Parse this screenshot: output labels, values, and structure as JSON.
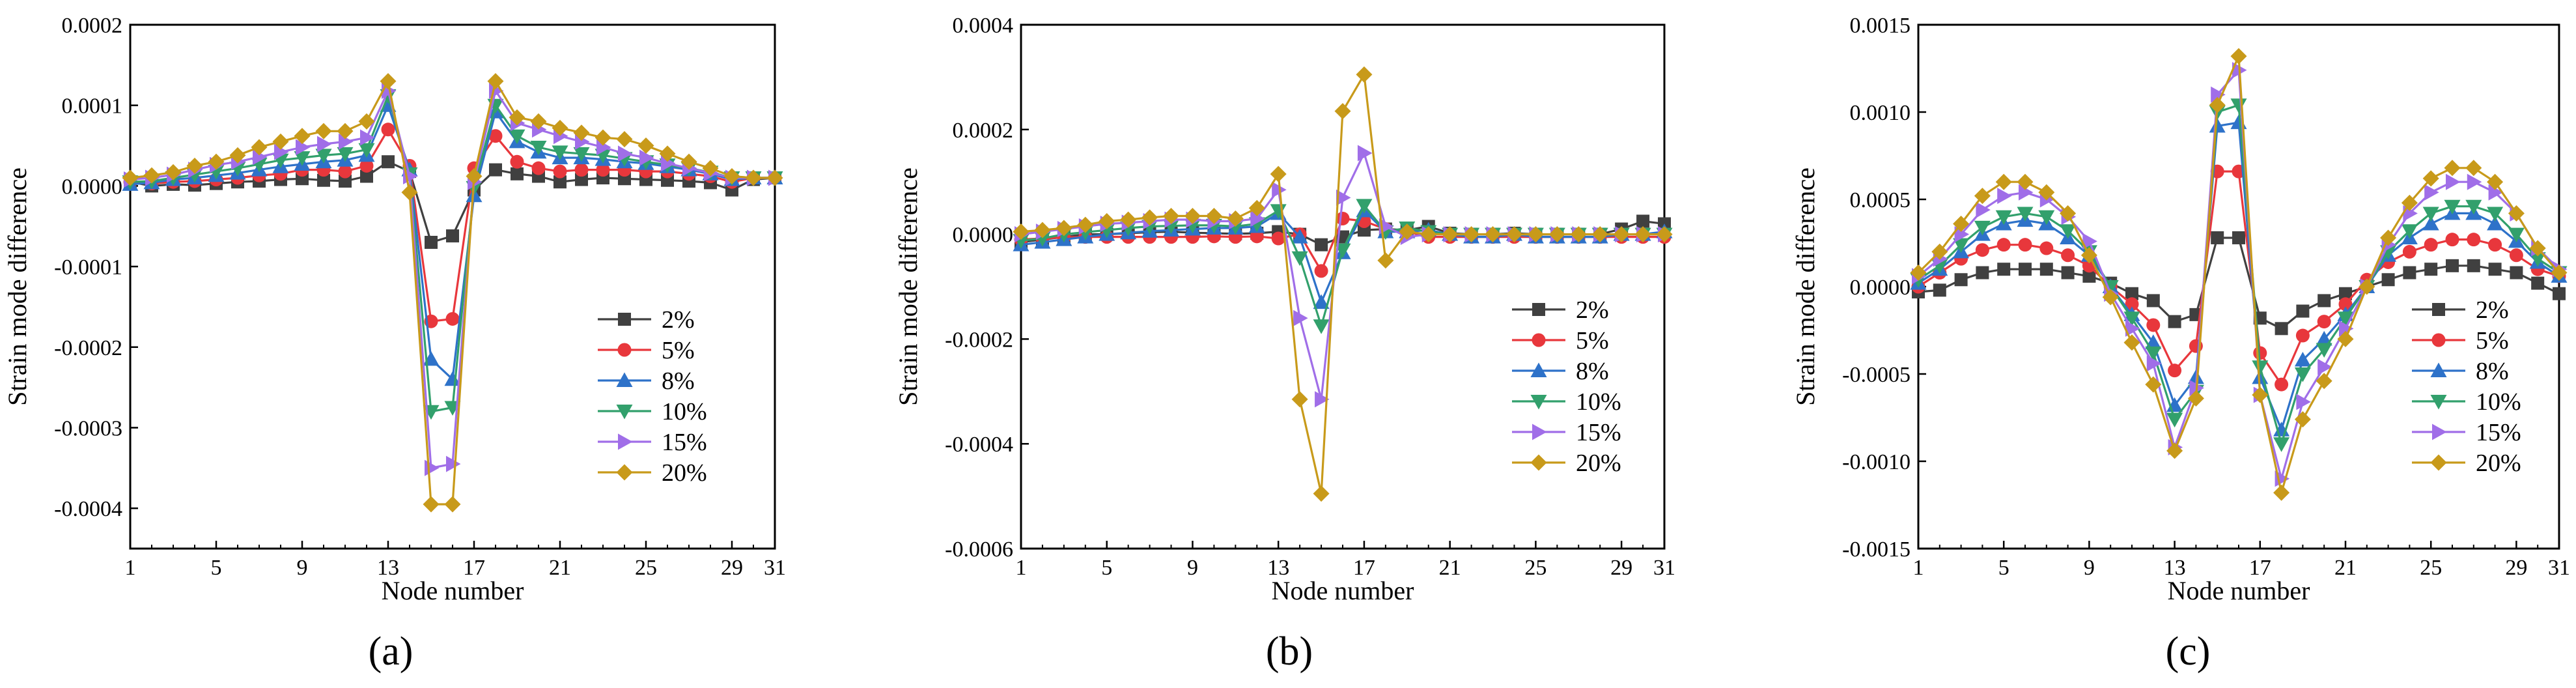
{
  "figure": {
    "panel_labels": [
      "(a)",
      "(b)",
      "(c)"
    ]
  },
  "colors": {
    "2%": "#404040",
    "5%": "#e8373c",
    "8%": "#2e72c9",
    "10%": "#32a06c",
    "15%": "#a06ee8",
    "20%": "#c89a1a"
  },
  "markers": {
    "2%": "square",
    "5%": "circle",
    "8%": "triangle-up",
    "10%": "triangle-down",
    "15%": "triangle-right",
    "20%": "diamond"
  },
  "chart_data": [
    {
      "type": "line",
      "panel": "(a)",
      "xlabel": "Node number",
      "ylabel": "Strain mode difference",
      "xlim": [
        1,
        31
      ],
      "ylim": [
        -0.00045,
        0.0002
      ],
      "xticks": [
        1,
        5,
        9,
        13,
        17,
        21,
        25,
        29,
        31
      ],
      "yticks": [
        -0.0004,
        -0.0003,
        -0.0002,
        -0.0001,
        0.0,
        0.0001,
        0.0002
      ],
      "ytick_labels": [
        "-0.0004",
        "-0.0003",
        "-0.0002",
        "-0.0001",
        "0.0000",
        "0.0001",
        "0.0002"
      ],
      "legend": [
        "2%",
        "5%",
        "8%",
        "10%",
        "15%",
        "20%"
      ],
      "x": [
        1,
        2,
        3,
        4,
        5,
        6,
        7,
        8,
        9,
        10,
        11,
        12,
        13,
        14,
        15,
        16,
        17,
        18,
        19,
        20,
        21,
        22,
        23,
        24,
        25,
        26,
        27,
        28,
        29,
        30,
        31
      ],
      "series": [
        {
          "name": "2%",
          "values": [
            5e-06,
            0,
            2e-06,
            1e-06,
            3e-06,
            5e-06,
            6e-06,
            8e-06,
            9e-06,
            7e-06,
            6e-06,
            1.2e-05,
            3e-05,
            1.8e-05,
            -7e-05,
            -6.2e-05,
            -5e-06,
            2e-05,
            1.5e-05,
            1.2e-05,
            5e-06,
            8e-06,
            1e-05,
            9e-06,
            8e-06,
            7e-06,
            6e-06,
            4e-06,
            -5e-06,
            8e-06,
            1e-05
          ]
        },
        {
          "name": "5%",
          "values": [
            5e-06,
            3e-06,
            5e-06,
            6e-06,
            8e-06,
            1e-05,
            1.3e-05,
            1.5e-05,
            2e-05,
            2e-05,
            1.8e-05,
            2.5e-05,
            7e-05,
            2.5e-05,
            -0.000168,
            -0.000165,
            2.2e-05,
            6.2e-05,
            3e-05,
            2.2e-05,
            1.8e-05,
            2e-05,
            2e-05,
            2e-05,
            1.8e-05,
            1.8e-05,
            1.5e-05,
            1.2e-05,
            5e-06,
            1e-05,
            1e-05
          ]
        },
        {
          "name": "8%",
          "values": [
            2e-06,
            4e-06,
            8e-06,
            1e-05,
            1.3e-05,
            1.6e-05,
            2e-05,
            2.4e-05,
            2.7e-05,
            3e-05,
            3.2e-05,
            3.8e-05,
            0.0001,
            2e-05,
            -0.000215,
            -0.00024,
            -1.2e-05,
            9.2e-05,
            5.5e-05,
            4.2e-05,
            3.5e-05,
            3.5e-05,
            3.3e-05,
            3e-05,
            2.8e-05,
            2.4e-05,
            2e-05,
            1.5e-05,
            8e-06,
            1e-05,
            1e-05
          ]
        },
        {
          "name": "10%",
          "values": [
            5e-06,
            6e-06,
            1e-05,
            1.4e-05,
            1.8e-05,
            2.2e-05,
            2.7e-05,
            3.2e-05,
            3.5e-05,
            3.8e-05,
            4e-05,
            4.5e-05,
            0.000112,
            1.5e-05,
            -0.00028,
            -0.000275,
            -2e-06,
            0.0001,
            6.2e-05,
            4.8e-05,
            4.2e-05,
            4e-05,
            3.8e-05,
            3.4e-05,
            3e-05,
            2.6e-05,
            2.2e-05,
            1.7e-05,
            1e-05,
            1e-05,
            1e-05
          ]
        },
        {
          "name": "15%",
          "values": [
            8e-06,
            1e-05,
            1.4e-05,
            2e-05,
            2.6e-05,
            3e-05,
            3.6e-05,
            4.2e-05,
            4.8e-05,
            5.2e-05,
            5.5e-05,
            6e-05,
            0.000118,
            1.2e-05,
            -0.00035,
            -0.000345,
            5e-06,
            0.000118,
            7.8e-05,
            7e-05,
            6.2e-05,
            5.5e-05,
            4.8e-05,
            4e-05,
            3.5e-05,
            2.8e-05,
            2.2e-05,
            1.6e-05,
            1e-05,
            1e-05,
            1e-05
          ]
        },
        {
          "name": "20%",
          "values": [
            1e-05,
            1.3e-05,
            1.7e-05,
            2.5e-05,
            3e-05,
            3.8e-05,
            4.8e-05,
            5.5e-05,
            6.2e-05,
            6.8e-05,
            6.8e-05,
            8e-05,
            0.00013,
            -8e-06,
            -0.000395,
            -0.000395,
            1.2e-05,
            0.00013,
            8.5e-05,
            8e-05,
            7.2e-05,
            6.6e-05,
            6e-05,
            5.8e-05,
            5e-05,
            4e-05,
            3e-05,
            2.2e-05,
            1.2e-05,
            1e-05,
            1e-05
          ]
        }
      ]
    },
    {
      "type": "line",
      "panel": "(b)",
      "xlabel": "Node number",
      "ylabel": "Strain mode difference",
      "xlim": [
        1,
        31
      ],
      "ylim": [
        -0.0006,
        0.0004
      ],
      "xticks": [
        1,
        5,
        9,
        13,
        17,
        21,
        25,
        29,
        31
      ],
      "yticks": [
        -0.0006,
        -0.0004,
        -0.0002,
        0.0,
        0.0002,
        0.0004
      ],
      "ytick_labels": [
        "-0.0006",
        "-0.0004",
        "-0.0002",
        "0.0000",
        "0.0002",
        "0.0004"
      ],
      "legend": [
        "2%",
        "5%",
        "8%",
        "10%",
        "15%",
        "20%"
      ],
      "x": [
        1,
        2,
        3,
        4,
        5,
        6,
        7,
        8,
        9,
        10,
        11,
        12,
        13,
        14,
        15,
        16,
        17,
        18,
        19,
        20,
        21,
        22,
        23,
        24,
        25,
        26,
        27,
        28,
        29,
        30,
        31
      ],
      "series": [
        {
          "name": "2%",
          "values": [
            -1.5e-05,
            -1e-05,
            -5e-06,
            0,
            0,
            2e-06,
            4e-06,
            5e-06,
            3e-06,
            2e-06,
            1e-06,
            2e-06,
            5e-06,
            0,
            -2e-05,
            -5e-06,
            8e-06,
            1e-05,
            8e-06,
            1.5e-05,
            2e-06,
            0,
            0,
            2e-06,
            0,
            0,
            0,
            0,
            1e-05,
            2.5e-05,
            2e-05
          ]
        },
        {
          "name": "5%",
          "values": [
            -1e-05,
            -8e-06,
            -6e-06,
            -5e-06,
            -5e-06,
            -5e-06,
            -5e-06,
            -5e-06,
            -5e-06,
            -4e-06,
            -5e-06,
            -4e-06,
            -8e-06,
            0,
            -7e-05,
            3e-05,
            2.5e-05,
            1e-05,
            5e-06,
            -5e-06,
            -5e-06,
            -5e-06,
            -5e-06,
            -5e-06,
            -5e-06,
            -5e-06,
            -5e-06,
            -5e-06,
            -5e-06,
            -5e-06,
            -5e-06
          ]
        },
        {
          "name": "8%",
          "values": [
            -2e-05,
            -1.5e-05,
            -1e-05,
            -5e-06,
            0,
            3e-06,
            6e-06,
            8e-06,
            1e-05,
            1.2e-05,
            1.2e-05,
            1.5e-05,
            4e-05,
            -5e-06,
            -0.00013,
            -3.5e-05,
            4.5e-05,
            5e-06,
            5e-06,
            8e-06,
            0,
            -5e-06,
            -5e-06,
            0,
            -5e-06,
            -5e-06,
            -5e-06,
            -5e-06,
            0,
            0,
            5e-06
          ]
        },
        {
          "name": "10%",
          "values": [
            -1.2e-05,
            -8e-06,
            0,
            4e-06,
            8e-06,
            1.2e-05,
            1.5e-05,
            1.6e-05,
            1.7e-05,
            1.7e-05,
            1.5e-05,
            2e-05,
            4.5e-05,
            -4.5e-05,
            -0.000175,
            -3e-05,
            5.5e-05,
            5e-06,
            1.2e-05,
            5e-06,
            0,
            0,
            0,
            0,
            0,
            0,
            0,
            0,
            0,
            0,
            0
          ]
        },
        {
          "name": "15%",
          "values": [
            0,
            5e-06,
            1e-05,
            1.5e-05,
            2e-05,
            2.2e-05,
            2.5e-05,
            2.8e-05,
            2.8e-05,
            2.5e-05,
            2.5e-05,
            3e-05,
            8.5e-05,
            -0.00016,
            -0.000315,
            7e-05,
            0.000155,
            1.5e-05,
            -5e-06,
            0,
            0,
            0,
            0,
            0,
            0,
            0,
            0,
            0,
            0,
            0,
            0
          ]
        },
        {
          "name": "20%",
          "values": [
            5e-06,
            8e-06,
            1.2e-05,
            1.8e-05,
            2.5e-05,
            2.8e-05,
            3.2e-05,
            3.5e-05,
            3.5e-05,
            3.5e-05,
            3e-05,
            5e-05,
            0.000115,
            -0.000315,
            -0.000495,
            0.000235,
            0.000305,
            -5e-05,
            5e-06,
            0,
            0,
            0,
            0,
            0,
            0,
            0,
            0,
            0,
            0,
            0,
            0
          ]
        }
      ]
    },
    {
      "type": "line",
      "panel": "(c)",
      "xlabel": "Node number",
      "ylabel": "Strain mode difference",
      "xlim": [
        1,
        31
      ],
      "ylim": [
        -0.0015,
        0.0015
      ],
      "xticks": [
        1,
        5,
        9,
        13,
        17,
        21,
        25,
        29,
        31
      ],
      "yticks": [
        -0.0015,
        -0.001,
        -0.0005,
        0.0,
        0.0005,
        0.001,
        0.0015
      ],
      "ytick_labels": [
        "-0.0015",
        "-0.0010",
        "-0.0005",
        "0.0000",
        "0.0005",
        "0.0010",
        "0.0015"
      ],
      "legend": [
        "2%",
        "5%",
        "8%",
        "10%",
        "15%",
        "20%"
      ],
      "x": [
        1,
        2,
        3,
        4,
        5,
        6,
        7,
        8,
        9,
        10,
        11,
        12,
        13,
        14,
        15,
        16,
        17,
        18,
        19,
        20,
        21,
        22,
        23,
        24,
        25,
        26,
        27,
        28,
        29,
        30,
        31
      ],
      "series": [
        {
          "name": "2%",
          "values": [
            -3e-05,
            -2e-05,
            4e-05,
            8e-05,
            0.0001,
            0.0001,
            0.0001,
            8e-05,
            6e-05,
            2e-05,
            -4e-05,
            -8e-05,
            -0.0002,
            -0.00016,
            0.00028,
            0.00028,
            -0.00018,
            -0.00024,
            -0.00014,
            -8e-05,
            -4e-05,
            0,
            4e-05,
            8e-05,
            0.0001,
            0.00012,
            0.00012,
            0.0001,
            8e-05,
            2e-05,
            -4e-05
          ]
        },
        {
          "name": "5%",
          "values": [
            0,
            8e-05,
            0.00016,
            0.00021,
            0.00024,
            0.00024,
            0.00022,
            0.00018,
            0.00012,
            0,
            -0.0001,
            -0.00022,
            -0.00048,
            -0.00034,
            0.00066,
            0.00066,
            -0.00038,
            -0.00056,
            -0.00028,
            -0.0002,
            -0.0001,
            4e-05,
            0.00014,
            0.0002,
            0.00024,
            0.00027,
            0.00027,
            0.00024,
            0.00018,
            0.0001,
            6e-05
          ]
        },
        {
          "name": "8%",
          "values": [
            2e-05,
            0.0001,
            0.0002,
            0.0003,
            0.00036,
            0.00038,
            0.00036,
            0.00028,
            0.00018,
            0,
            -0.00016,
            -0.00032,
            -0.00068,
            -0.00052,
            0.00092,
            0.00094,
            -0.00052,
            -0.00082,
            -0.00042,
            -0.0003,
            -0.00016,
            0,
            0.00018,
            0.00028,
            0.00036,
            0.00042,
            0.00042,
            0.00036,
            0.00026,
            0.00014,
            6e-05
          ]
        },
        {
          "name": "10%",
          "values": [
            4e-05,
            0.00012,
            0.00024,
            0.00034,
            0.0004,
            0.00042,
            0.0004,
            0.00032,
            0.0002,
            0,
            -0.00018,
            -0.00038,
            -0.00076,
            -0.0006,
            0.001,
            0.00104,
            -0.00046,
            -0.0009,
            -0.0005,
            -0.00036,
            -0.00018,
            0,
            0.0002,
            0.00032,
            0.00042,
            0.00046,
            0.00046,
            0.00042,
            0.0003,
            0.00016,
            8e-05
          ]
        },
        {
          "name": "15%",
          "values": [
            6e-05,
            0.00016,
            0.0003,
            0.00044,
            0.00052,
            0.00054,
            0.0005,
            0.0004,
            0.00026,
            -4e-05,
            -0.00024,
            -0.00044,
            -0.00092,
            -0.00058,
            0.0011,
            0.00124,
            -0.00062,
            -0.0011,
            -0.00066,
            -0.00046,
            -0.00024,
            0,
            0.00024,
            0.00042,
            0.00054,
            0.0006,
            0.0006,
            0.00054,
            0.00042,
            0.00022,
            0.0001
          ]
        },
        {
          "name": "20%",
          "values": [
            8e-05,
            0.0002,
            0.00036,
            0.00052,
            0.0006,
            0.0006,
            0.00054,
            0.00042,
            0.00018,
            -6e-05,
            -0.00032,
            -0.00056,
            -0.00094,
            -0.00064,
            0.00104,
            0.00132,
            -0.00062,
            -0.00118,
            -0.00076,
            -0.00054,
            -0.0003,
            0,
            0.00028,
            0.00048,
            0.00062,
            0.00068,
            0.00068,
            0.0006,
            0.00042,
            0.00022,
            8e-05
          ]
        }
      ]
    }
  ]
}
